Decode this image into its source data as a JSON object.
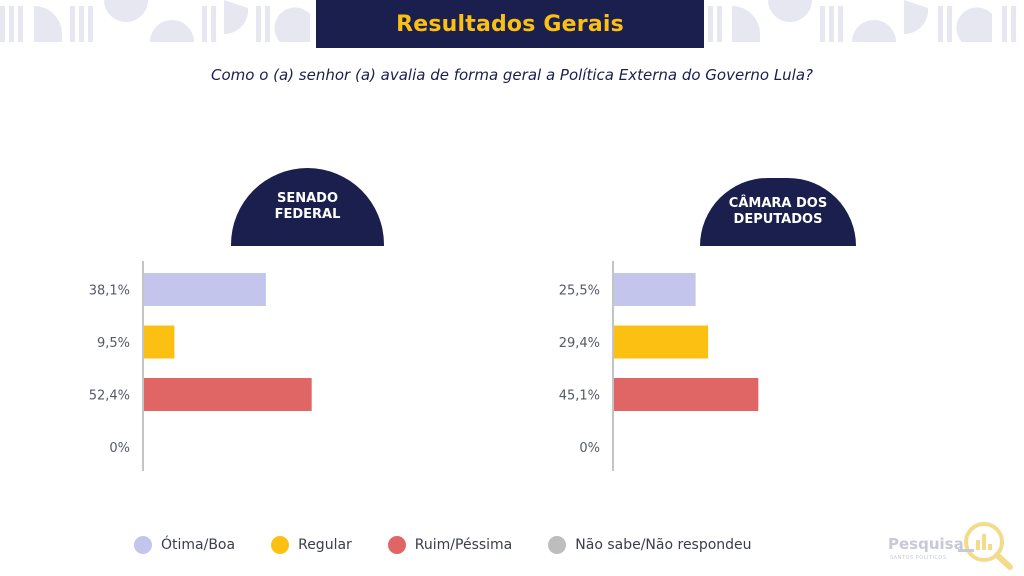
{
  "header": {
    "title": "Resultados Gerais",
    "question": "Como o (a) senhor (a) avalia de forma geral a Política Externa do Governo Lula?"
  },
  "colors": {
    "navy": "#1b1f4e",
    "accent": "#fcc012",
    "otima_boa": "#c3c5ed",
    "regular": "#fcc012",
    "ruim_pessima": "#e06666",
    "nao_sabe": "#bdbdbd"
  },
  "legend": [
    {
      "label": "Ótima/Boa",
      "color": "#c3c5ed"
    },
    {
      "label": "Regular",
      "color": "#fcc012"
    },
    {
      "label": "Ruim/Péssima",
      "color": "#e06666"
    },
    {
      "label": "Não sabe/Não respondeu",
      "color": "#bdbdbd"
    }
  ],
  "logo": {
    "text": "Pesquisa",
    "sub": "SANTOS POLITICOS",
    "icon": "magnifier-chart-icon"
  },
  "chart_data": [
    {
      "type": "bar",
      "orientation": "horizontal",
      "title": "SENADO FEDERAL",
      "categories": [
        "Ótima/Boa",
        "Regular",
        "Ruim/Péssima",
        "Não sabe/Não respondeu"
      ],
      "values": [
        38.1,
        9.5,
        52.4,
        0
      ],
      "labels": [
        "38,1%",
        "9,5%",
        "52,4%",
        "0%"
      ],
      "colors": [
        "#c3c5ed",
        "#fcc012",
        "#e06666",
        "#bdbdbd"
      ],
      "xlim": [
        0,
        100
      ],
      "grid": false
    },
    {
      "type": "bar",
      "orientation": "horizontal",
      "title": "CÂMARA DOS DEPUTADOS",
      "categories": [
        "Ótima/Boa",
        "Regular",
        "Ruim/Péssima",
        "Não sabe/Não respondeu"
      ],
      "values": [
        25.5,
        29.4,
        45.1,
        0
      ],
      "labels": [
        "25,5%",
        "29,4%",
        "45,1%",
        "0%"
      ],
      "colors": [
        "#c3c5ed",
        "#fcc012",
        "#e06666",
        "#bdbdbd"
      ],
      "xlim": [
        0,
        100
      ],
      "grid": false
    }
  ]
}
